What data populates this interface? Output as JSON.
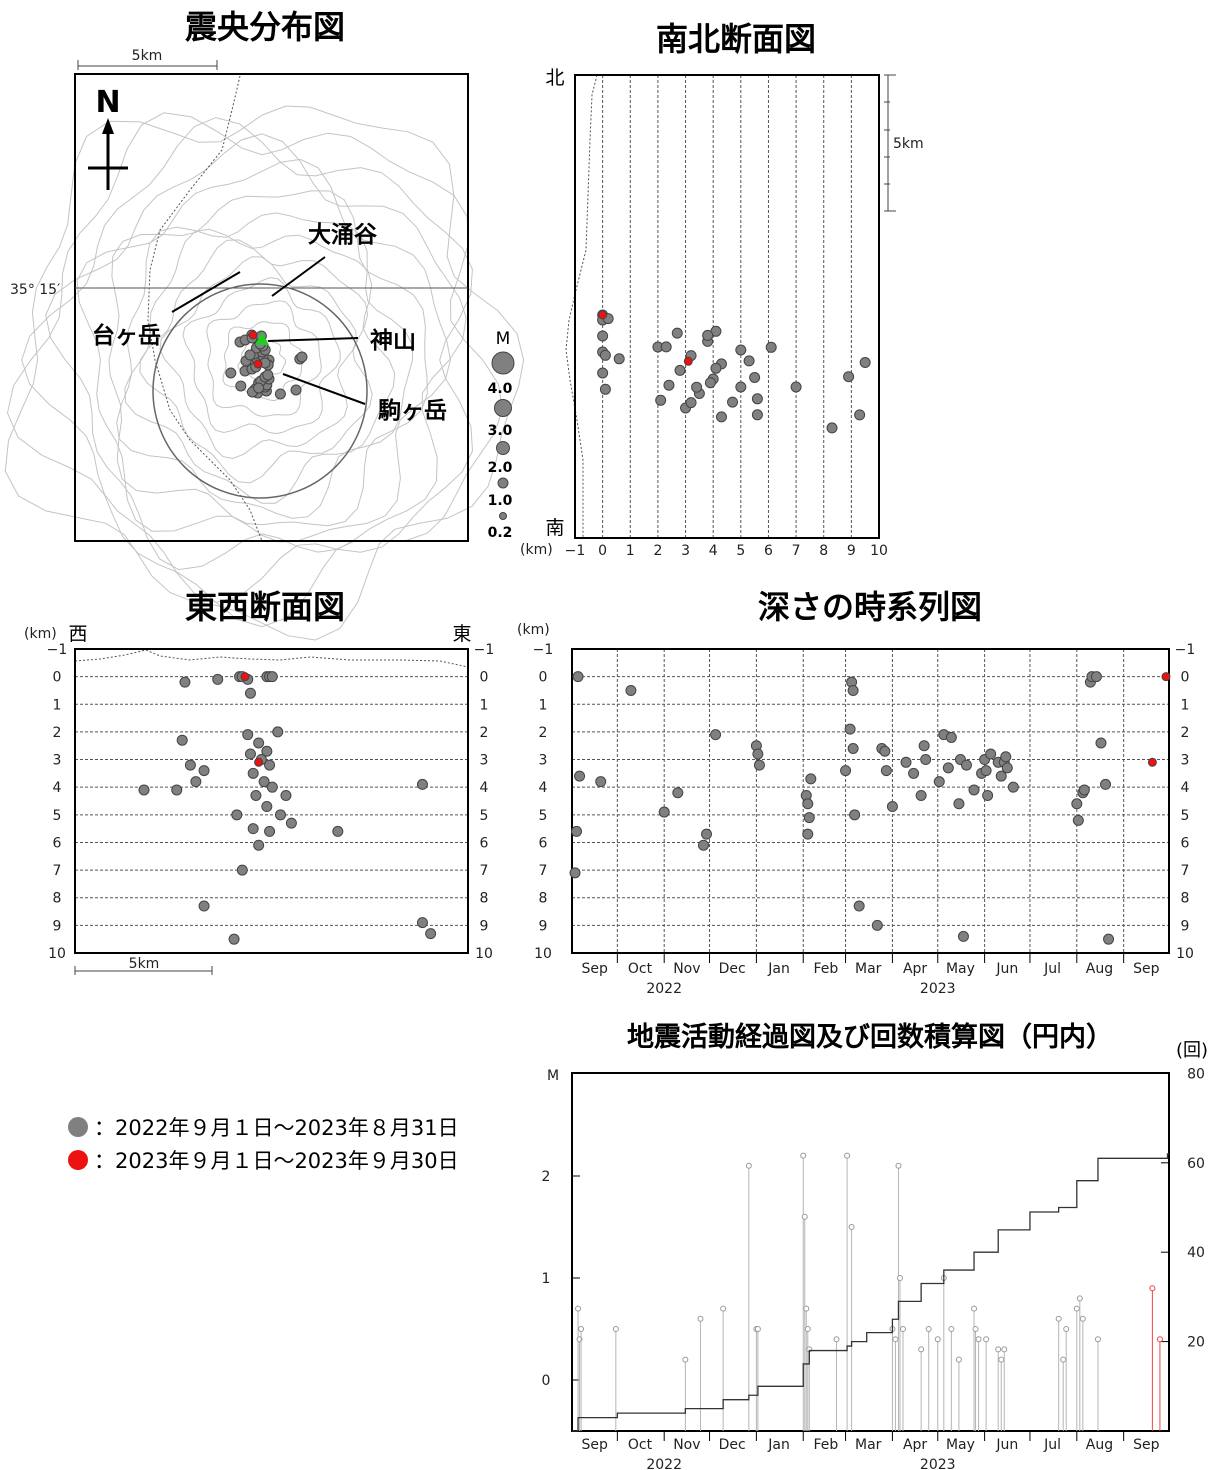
{
  "titles": {
    "epicenter": "震央分布図",
    "ns": "南北断面図",
    "ew": "東西断面図",
    "time_depth": "深さの時系列図",
    "activity": "地震活動経過図及び回数積算図（円内）"
  },
  "map": {
    "scale": "5km",
    "north": "N",
    "lat": "35° 15′",
    "places": [
      "大涌谷",
      "台ヶ岳",
      "神山",
      "駒ヶ岳"
    ],
    "mag_label": "M",
    "mag_scale": [
      "4.0",
      "3.0",
      "2.0",
      "1.0",
      "0.2"
    ]
  },
  "ns_section": {
    "north": "北",
    "south": "南",
    "scale": "5km",
    "unit": "(km)",
    "x_ticks": [
      "−1",
      "0",
      "1",
      "2",
      "3",
      "4",
      "5",
      "6",
      "7",
      "8",
      "9",
      "10"
    ]
  },
  "ew_section": {
    "unit": "(km)",
    "west": "西",
    "east": "東",
    "scale": "5km",
    "depth_ticks": [
      "−1",
      "0",
      "1",
      "2",
      "3",
      "4",
      "5",
      "6",
      "7",
      "8",
      "9",
      "10"
    ]
  },
  "time_axis": {
    "months": [
      "Sep",
      "Oct",
      "Nov",
      "Dec",
      "Jan",
      "Feb",
      "Mar",
      "Apr",
      "May",
      "Jun",
      "Jul",
      "Aug",
      "Sep"
    ],
    "years": [
      "2022",
      "2023"
    ]
  },
  "depth_chart": {
    "unit": "(km)",
    "ticks": [
      "−1",
      "0",
      "1",
      "2",
      "3",
      "4",
      "5",
      "6",
      "7",
      "8",
      "9",
      "10"
    ]
  },
  "activity_chart": {
    "left_label": "M",
    "right_label": "(回)",
    "left_ticks": [
      "2",
      "1",
      "0"
    ],
    "right_ticks": [
      "80",
      "60",
      "40",
      "20"
    ]
  },
  "legend": [
    {
      "text": "：2022年９月１日～2023年８月31日",
      "color": "#808080"
    },
    {
      "text": "：2023年９月１日～2023年９月30日",
      "color": "#ee1111"
    }
  ],
  "chart_data": [
    {
      "type": "scatter",
      "title": "東西断面図",
      "ylabel": "(km)",
      "ylim": [
        10,
        -1
      ],
      "series": [
        {
          "name": "2022-09〜2023-08",
          "color": "#808080",
          "points": [
            [
              -0.2,
              0
            ],
            [
              -0.1,
              0
            ],
            [
              0.1,
              0.1
            ],
            [
              0.8,
              0
            ],
            [
              0.9,
              0
            ],
            [
              1,
              0
            ],
            [
              0.2,
              0.6
            ],
            [
              0.1,
              2.1
            ],
            [
              1.2,
              2
            ],
            [
              0.5,
              2.4
            ],
            [
              0.8,
              2.7
            ],
            [
              0.2,
              2.8
            ],
            [
              0.6,
              3.0
            ],
            [
              0.9,
              3.2
            ],
            [
              0.3,
              3.5
            ],
            [
              0.7,
              3.8
            ],
            [
              1.0,
              4.0
            ],
            [
              0.4,
              4.3
            ],
            [
              1.5,
              4.3
            ],
            [
              0.8,
              4.7
            ],
            [
              1.3,
              5
            ],
            [
              -0.3,
              5.0
            ],
            [
              -3.7,
              4.1
            ],
            [
              -2.5,
              4.1
            ],
            [
              -2.0,
              3.2
            ],
            [
              -2.3,
              2.3
            ],
            [
              -1.5,
              3.4
            ],
            [
              -1.8,
              3.8
            ],
            [
              0.3,
              5.5
            ],
            [
              0.9,
              5.6
            ],
            [
              1.7,
              5.3
            ],
            [
              3.4,
              5.6
            ],
            [
              0.5,
              6.1
            ],
            [
              -0.1,
              7.0
            ],
            [
              -1.5,
              8.3
            ],
            [
              6.5,
              8.9
            ],
            [
              6.8,
              9.3
            ],
            [
              -0.4,
              9.5
            ],
            [
              6.5,
              3.9
            ],
            [
              -2.2,
              0.2
            ],
            [
              -1.0,
              0.1
            ]
          ]
        },
        {
          "name": "2023-09",
          "color": "#ee1111",
          "points": [
            [
              0,
              0
            ],
            [
              0.5,
              3.1
            ]
          ]
        }
      ]
    },
    {
      "type": "scatter",
      "title": "深さの時系列図",
      "ylabel": "(km)",
      "ylim": [
        10,
        -1
      ],
      "series": [
        {
          "name": "2022-09〜2023-08",
          "color": "#808080",
          "points": [
            [
              "2022-09-05",
              0
            ],
            [
              "2022-09-06",
              3.6
            ],
            [
              "2022-09-04",
              5.6
            ],
            [
              "2022-09-03",
              7.1
            ],
            [
              "2022-09-20",
              3.8
            ],
            [
              "2022-10-10",
              0.5
            ],
            [
              "2022-11-01",
              4.9
            ],
            [
              "2022-11-10",
              4.2
            ],
            [
              "2022-11-27",
              6.1
            ],
            [
              "2022-11-29",
              5.7
            ],
            [
              "2022-12-05",
              2.1
            ],
            [
              "2023-01-01",
              2.5
            ],
            [
              "2023-01-02",
              2.8
            ],
            [
              "2023-01-03",
              3.2
            ],
            [
              "2023-02-03",
              4.3
            ],
            [
              "2023-02-04",
              4.6
            ],
            [
              "2023-02-05",
              5.1
            ],
            [
              "2023-02-04",
              5.7
            ],
            [
              "2023-02-06",
              3.7
            ],
            [
              "2023-03-01",
              3.4
            ],
            [
              "2023-03-04",
              1.9
            ],
            [
              "2023-03-05",
              0.2
            ],
            [
              "2023-03-06",
              0.5
            ],
            [
              "2023-03-06",
              2.6
            ],
            [
              "2023-03-07",
              5.0
            ],
            [
              "2023-03-10",
              8.3
            ],
            [
              "2023-03-22",
              9.0
            ],
            [
              "2023-03-25",
              2.6
            ],
            [
              "2023-03-27",
              2.7
            ],
            [
              "2023-03-28",
              3.4
            ],
            [
              "2023-04-01",
              4.7
            ],
            [
              "2023-04-10",
              3.1
            ],
            [
              "2023-04-15",
              3.5
            ],
            [
              "2023-04-20",
              4.3
            ],
            [
              "2023-04-22",
              2.5
            ],
            [
              "2023-04-23",
              3.0
            ],
            [
              "2023-05-02",
              3.8
            ],
            [
              "2023-05-05",
              2.1
            ],
            [
              "2023-05-08",
              3.3
            ],
            [
              "2023-05-10",
              2.2
            ],
            [
              "2023-05-15",
              4.6
            ],
            [
              "2023-05-16",
              3.0
            ],
            [
              "2023-05-18",
              9.4
            ],
            [
              "2023-05-20",
              3.2
            ],
            [
              "2023-05-25",
              4.1
            ],
            [
              "2023-05-30",
              3.5
            ],
            [
              "2023-06-01",
              3.0
            ],
            [
              "2023-06-02",
              3.4
            ],
            [
              "2023-06-03",
              4.3
            ],
            [
              "2023-06-05",
              2.8
            ],
            [
              "2023-06-10",
              3.1
            ],
            [
              "2023-06-12",
              3.6
            ],
            [
              "2023-06-14",
              3.1
            ],
            [
              "2023-06-15",
              2.9
            ],
            [
              "2023-06-16",
              3.3
            ],
            [
              "2023-06-20",
              4.0
            ],
            [
              "2023-08-01",
              4.6
            ],
            [
              "2023-08-02",
              5.2
            ],
            [
              "2023-08-05",
              4.2
            ],
            [
              "2023-08-06",
              4.1
            ],
            [
              "2023-08-10",
              0.2
            ],
            [
              "2023-08-11",
              0.0
            ],
            [
              "2023-08-14",
              0.0
            ],
            [
              "2023-08-17",
              2.4
            ],
            [
              "2023-08-20",
              3.9
            ],
            [
              "2023-08-22",
              9.5
            ]
          ]
        },
        {
          "name": "2023-09",
          "color": "#ee1111",
          "points": [
            [
              "2023-09-20",
              3.1
            ],
            [
              "2023-09-29",
              0
            ]
          ]
        }
      ]
    },
    {
      "type": "bar",
      "title": "地震活動経過図",
      "ylabel": "M",
      "ylim": [
        -0.5,
        2.5
      ],
      "series": [
        {
          "name": "2022-09〜2023-08",
          "color": "#aaaaaa",
          "points": [
            [
              "2022-09-05",
              0.7
            ],
            [
              "2022-09-06",
              0.4
            ],
            [
              "2022-09-07",
              0.5
            ],
            [
              "2022-09-30",
              0.5
            ],
            [
              "2022-11-15",
              0.2
            ],
            [
              "2022-11-25",
              0.6
            ],
            [
              "2022-12-10",
              0.7
            ],
            [
              "2022-12-27",
              2.1
            ],
            [
              "2023-01-01",
              0.5
            ],
            [
              "2023-01-02",
              0.5
            ],
            [
              "2023-02-01",
              2.2
            ],
            [
              "2023-02-02",
              1.6
            ],
            [
              "2023-02-03",
              0.7
            ],
            [
              "2023-02-04",
              0.5
            ],
            [
              "2023-02-05",
              0.3
            ],
            [
              "2023-02-23",
              0.4
            ],
            [
              "2023-03-02",
              2.2
            ],
            [
              "2023-03-05",
              1.5
            ],
            [
              "2023-04-01",
              0.5
            ],
            [
              "2023-04-03",
              0.4
            ],
            [
              "2023-04-05",
              2.1
            ],
            [
              "2023-04-06",
              1.0
            ],
            [
              "2023-04-08",
              0.5
            ],
            [
              "2023-04-20",
              0.3
            ],
            [
              "2023-04-25",
              0.5
            ],
            [
              "2023-05-01",
              0.4
            ],
            [
              "2023-05-05",
              1.0
            ],
            [
              "2023-05-10",
              0.5
            ],
            [
              "2023-05-15",
              0.2
            ],
            [
              "2023-05-25",
              0.7
            ],
            [
              "2023-05-26",
              0.5
            ],
            [
              "2023-05-28",
              0.4
            ],
            [
              "2023-06-02",
              0.4
            ],
            [
              "2023-06-10",
              0.3
            ],
            [
              "2023-06-12",
              0.2
            ],
            [
              "2023-06-14",
              0.3
            ],
            [
              "2023-07-20",
              0.6
            ],
            [
              "2023-07-23",
              0.2
            ],
            [
              "2023-07-25",
              0.5
            ],
            [
              "2023-08-01",
              0.7
            ],
            [
              "2023-08-03",
              0.8
            ],
            [
              "2023-08-05",
              0.6
            ],
            [
              "2023-08-15",
              0.4
            ]
          ]
        },
        {
          "name": "2023-09",
          "color": "#ee1111",
          "points": [
            [
              "2023-09-20",
              0.9
            ],
            [
              "2023-09-25",
              0.4
            ]
          ]
        }
      ],
      "cumulative": {
        "ylim": [
          0,
          80
        ],
        "points": [
          [
            "2022-09-01",
            0
          ],
          [
            "2022-09-05",
            3
          ],
          [
            "2022-10-01",
            4
          ],
          [
            "2022-11-15",
            5
          ],
          [
            "2022-12-10",
            7
          ],
          [
            "2022-12-27",
            8
          ],
          [
            "2023-01-02",
            10
          ],
          [
            "2023-02-01",
            15
          ],
          [
            "2023-02-05",
            18
          ],
          [
            "2023-03-02",
            19
          ],
          [
            "2023-03-05",
            20
          ],
          [
            "2023-03-15",
            22
          ],
          [
            "2023-04-01",
            25
          ],
          [
            "2023-04-05",
            29
          ],
          [
            "2023-04-20",
            33
          ],
          [
            "2023-05-05",
            36
          ],
          [
            "2023-05-25",
            40
          ],
          [
            "2023-06-10",
            45
          ],
          [
            "2023-07-01",
            49
          ],
          [
            "2023-07-20",
            50
          ],
          [
            "2023-08-01",
            56
          ],
          [
            "2023-08-15",
            61
          ],
          [
            "2023-09-20",
            61
          ],
          [
            "2023-09-30",
            62
          ]
        ]
      }
    }
  ]
}
